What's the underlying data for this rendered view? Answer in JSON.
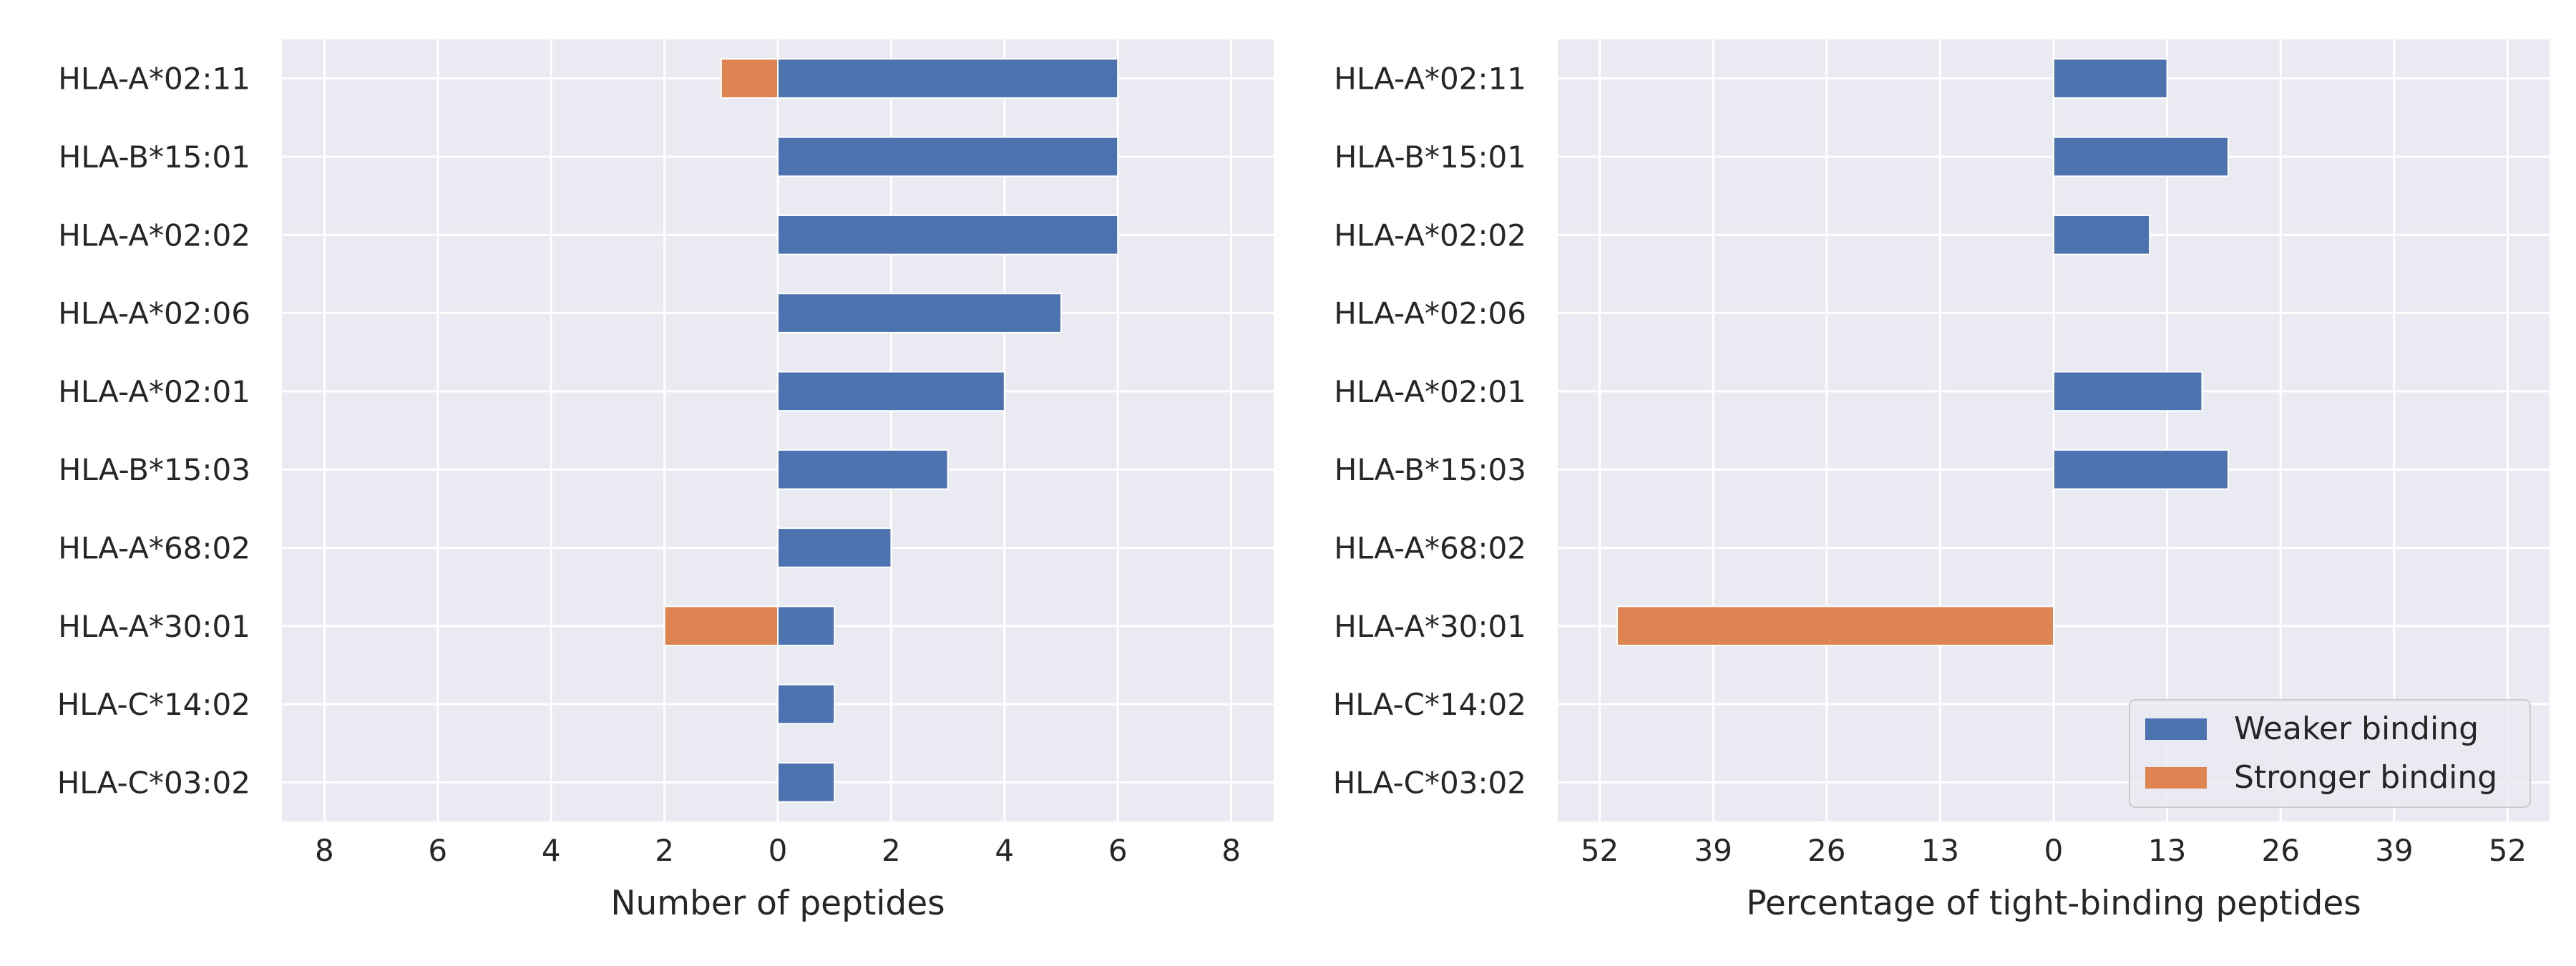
{
  "chart_data": [
    {
      "type": "bar",
      "orientation": "horizontal",
      "stacked": "diverging",
      "categories": [
        "HLA-A*02:11",
        "HLA-B*15:01",
        "HLA-A*02:02",
        "HLA-A*02:06",
        "HLA-A*02:01",
        "HLA-B*15:03",
        "HLA-A*68:02",
        "HLA-A*30:01",
        "HLA-C*14:02",
        "HLA-C*03:02"
      ],
      "series": [
        {
          "name": "Weaker binding",
          "color": "#4c72b0",
          "direction": "right",
          "values": [
            6,
            6,
            6,
            5,
            4,
            3,
            2,
            1,
            1,
            1
          ]
        },
        {
          "name": "Stronger binding",
          "color": "#dd8452",
          "direction": "left",
          "values": [
            1,
            0,
            0,
            0,
            0,
            0,
            0,
            2,
            0,
            0
          ]
        }
      ],
      "xlabel": "Number of peptides",
      "ylabel": "",
      "xlim": [
        -8.75,
        8.75
      ],
      "xticks": [
        -8,
        -6,
        -4,
        -2,
        0,
        2,
        4,
        6,
        8
      ],
      "xtick_labels": [
        "8",
        "6",
        "4",
        "2",
        "0",
        "2",
        "4",
        "6",
        "8"
      ],
      "grid": true,
      "background": "#eaeaf2"
    },
    {
      "type": "bar",
      "orientation": "horizontal",
      "stacked": "diverging",
      "categories": [
        "HLA-A*02:11",
        "HLA-B*15:01",
        "HLA-A*02:02",
        "HLA-A*02:06",
        "HLA-A*02:01",
        "HLA-B*15:03",
        "HLA-A*68:02",
        "HLA-A*30:01",
        "HLA-C*14:02",
        "HLA-C*03:02"
      ],
      "series": [
        {
          "name": "Weaker binding",
          "color": "#4c72b0",
          "direction": "right",
          "values": [
            13,
            20,
            11,
            0,
            17,
            20,
            0,
            0,
            0,
            0
          ]
        },
        {
          "name": "Stronger binding",
          "color": "#dd8452",
          "direction": "left",
          "values": [
            0,
            0,
            0,
            0,
            0,
            0,
            0,
            50,
            0,
            0
          ]
        }
      ],
      "xlabel": "Percentage of tight-binding peptides",
      "ylabel": "",
      "xlim": [
        -56.8,
        56.8
      ],
      "xticks": [
        -52,
        -39,
        -26,
        -13,
        0,
        13,
        26,
        39,
        52
      ],
      "xtick_labels": [
        "52",
        "39",
        "26",
        "13",
        "0",
        "13",
        "26",
        "39",
        "52"
      ],
      "grid": true,
      "background": "#eaeaf2",
      "legend": {
        "position": "lower-right",
        "entries": [
          "Weaker binding",
          "Stronger binding"
        ]
      }
    }
  ]
}
